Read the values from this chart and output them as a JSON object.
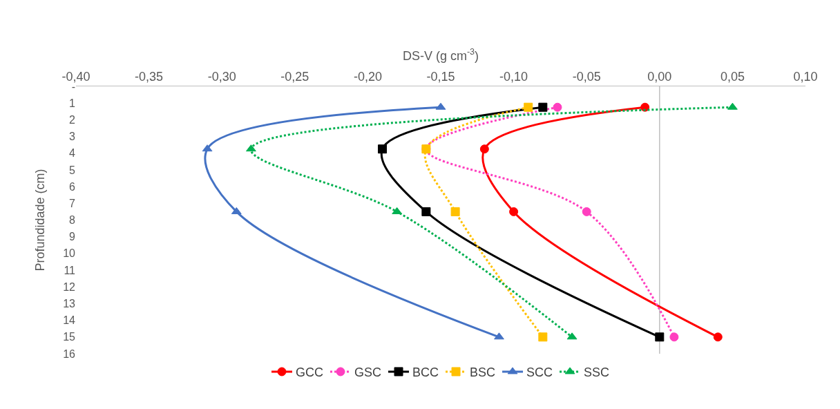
{
  "chart_data": {
    "type": "line",
    "xlabel": "DS-V (g cm$^{-3}$)",
    "ylabel": "Profundidade (cm)",
    "xlim": [
      -0.4,
      0.1
    ],
    "xticks": [
      {
        "value": -0.4,
        "label": "-0,40"
      },
      {
        "value": -0.35,
        "label": "-0,35"
      },
      {
        "value": -0.3,
        "label": "-0,30"
      },
      {
        "value": -0.25,
        "label": "-0,25"
      },
      {
        "value": -0.2,
        "label": "-0,20"
      },
      {
        "value": -0.15,
        "label": "-0,15"
      },
      {
        "value": -0.1,
        "label": "-0,10"
      },
      {
        "value": -0.05,
        "label": "-0,05"
      },
      {
        "value": 0,
        "label": "0,00"
      },
      {
        "value": 0.05,
        "label": "0,05"
      },
      {
        "value": 0.1,
        "label": "0,10"
      }
    ],
    "ylim": [
      16,
      0
    ],
    "yticks": [
      {
        "value": 0,
        "label": "-"
      },
      1,
      2,
      3,
      4,
      5,
      6,
      7,
      8,
      9,
      10,
      11,
      12,
      13,
      14,
      15,
      16
    ],
    "ref_lines": [
      {
        "axis": "x",
        "value": 0,
        "color": "#bfbfbf"
      }
    ],
    "legend": "bottom",
    "series": [
      {
        "name": "GCC",
        "color": "#ff0000",
        "marker": "circle",
        "line_style": "solid",
        "x": [
          -0.01,
          -0.12,
          -0.1,
          0.04
        ],
        "values": [
          1.25,
          3.75,
          7.5,
          15
        ]
      },
      {
        "name": "GSC",
        "color": "#ff3fbf",
        "marker": "circle",
        "line_style": "dotted",
        "x": [
          -0.07,
          -0.16,
          -0.05,
          0.01
        ],
        "values": [
          1.25,
          3.75,
          7.5,
          15
        ]
      },
      {
        "name": "BCC",
        "color": "#000000",
        "marker": "square",
        "line_style": "solid",
        "x": [
          -0.08,
          -0.19,
          -0.16,
          0.0
        ],
        "values": [
          1.25,
          3.75,
          7.5,
          15
        ]
      },
      {
        "name": "BSC",
        "color": "#ffc000",
        "marker": "square",
        "line_style": "dotted",
        "x": [
          -0.09,
          -0.16,
          -0.14,
          -0.08
        ],
        "values": [
          1.25,
          3.75,
          7.5,
          15
        ]
      },
      {
        "name": "SCC",
        "color": "#4472c4",
        "marker": "triangle",
        "line_style": "solid",
        "x": [
          -0.15,
          -0.31,
          -0.29,
          -0.11
        ],
        "values": [
          1.25,
          3.75,
          7.5,
          15
        ]
      },
      {
        "name": "SSC",
        "color": "#00b050",
        "marker": "triangle",
        "line_style": "dotted",
        "x": [
          0.05,
          -0.28,
          -0.18,
          -0.06
        ],
        "values": [
          1.25,
          3.75,
          7.5,
          15
        ]
      }
    ]
  }
}
